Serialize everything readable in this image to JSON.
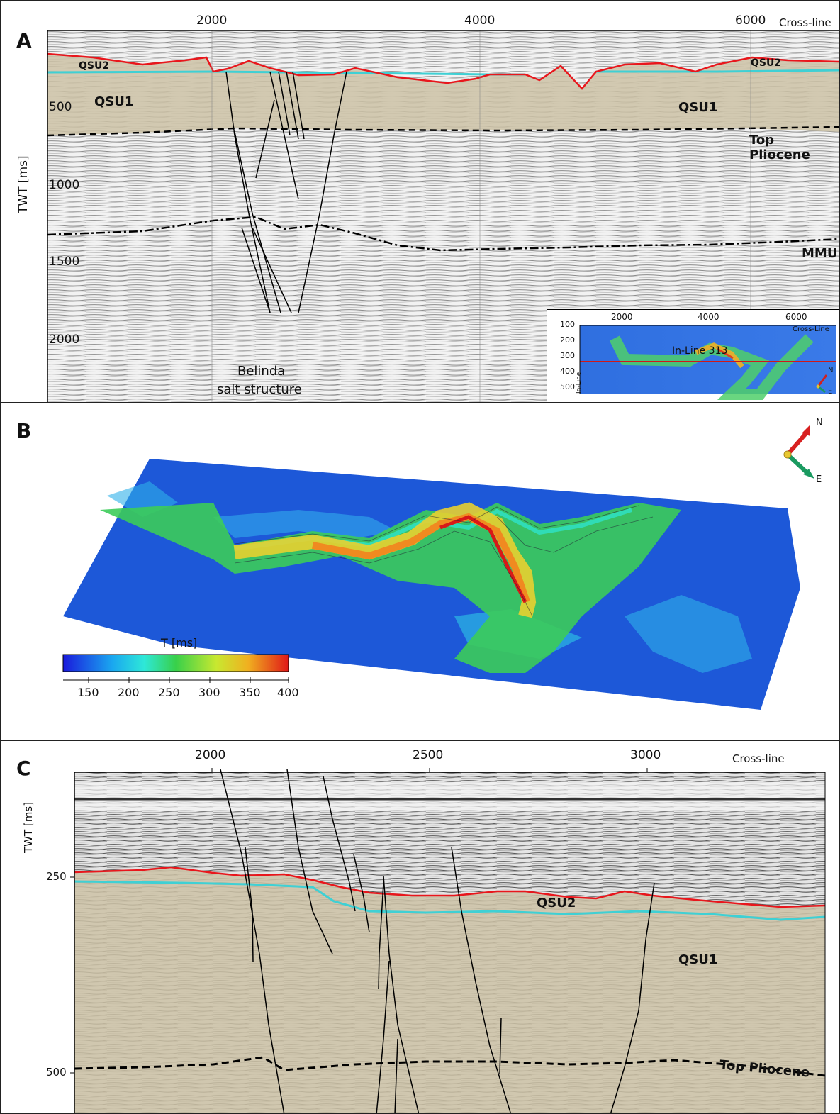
{
  "panelA": {
    "letter": "A",
    "x_ticks": [
      "2000",
      "4000",
      "6000"
    ],
    "x_axis_label": "Cross-line",
    "y_axis_label": "TWT [ms]",
    "y_ticks": [
      "500",
      "1000",
      "1500",
      "2000"
    ],
    "horizons": {
      "qsu2_left": "QSU2",
      "qsu2_right": "QSU2",
      "qsu1_left": "QSU1",
      "qsu1_right": "QSU1",
      "top_pliocene": "Top Pliocene",
      "mmu": "MMU"
    },
    "structure_label_1": "Belinda",
    "structure_label_2": "salt structure",
    "inset": {
      "x_ticks": [
        "2000",
        "4000",
        "6000"
      ],
      "x_axis_label": "Cross-Line",
      "y_ticks": [
        "100",
        "200",
        "300",
        "400",
        "500"
      ],
      "y_axis_label": "In-Line",
      "line_label": "In-Line 313",
      "north": "N",
      "east": "E"
    }
  },
  "panelB": {
    "letter": "B",
    "north": "N",
    "east": "E",
    "colorbar": {
      "title": "T [ms]",
      "ticks": [
        "150",
        "200",
        "250",
        "300",
        "350",
        "400"
      ]
    }
  },
  "panelC": {
    "letter": "C",
    "x_ticks": [
      "2000",
      "2500",
      "3000"
    ],
    "x_axis_label": "Cross-line",
    "y_axis_label": "TWT [ms]",
    "y_ticks": [
      "250",
      "500"
    ],
    "horizons": {
      "qsu2": "QSU2",
      "qsu1": "QSU1",
      "top_pliocene": "Top Pliocene"
    }
  },
  "colors": {
    "qsu2_horizon": "#e8161c",
    "qsu1_top": "#3fd0d4",
    "fill_qsu": "#cdc2a6",
    "fault": "#000000"
  }
}
